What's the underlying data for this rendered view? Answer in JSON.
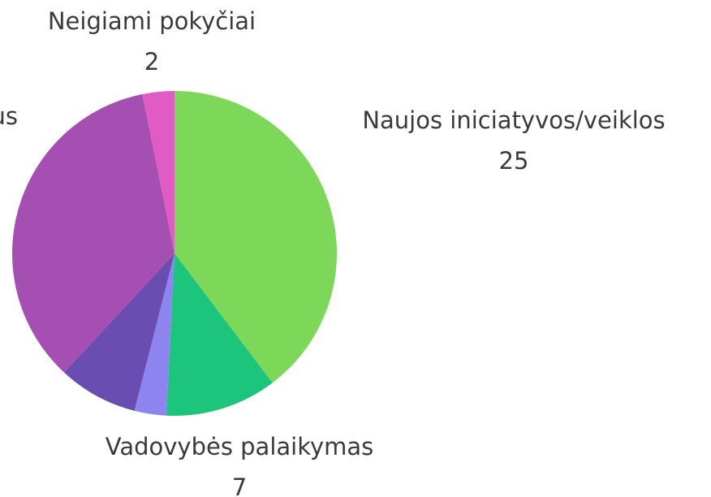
{
  "chart_data": {
    "type": "pie",
    "categories": [
      "Naujos iniciatyvos/veiklos",
      "Vadovybės palaikymas",
      null,
      null,
      "us",
      "Neigiami pokyčiai"
    ],
    "values": [
      25,
      7,
      2,
      5,
      22,
      2
    ],
    "value_labels": [
      "25",
      "7",
      null,
      null,
      null,
      "2"
    ],
    "colors": [
      "#7dd85a",
      "#1dc47b",
      "#8e84f0",
      "#6a4db0",
      "#a54fb3",
      "#e05bc4"
    ]
  }
}
